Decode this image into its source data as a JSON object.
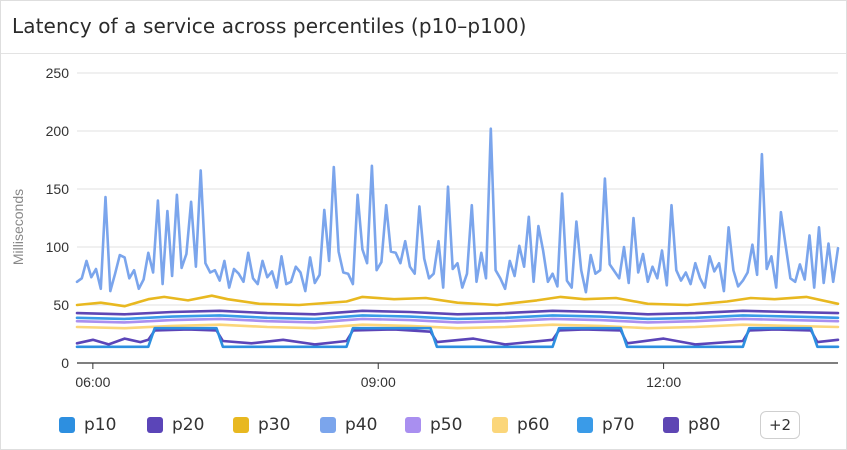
{
  "chart_data": {
    "type": "line",
    "title": "Latency of a service across percentiles (p10–p100)",
    "ylabel": "Milliseconds",
    "xlabel": "",
    "ylim": [
      0,
      250
    ],
    "yticks": [
      0,
      50,
      100,
      150,
      200,
      250
    ],
    "x_range": [
      "05:50",
      "13:50"
    ],
    "xticks": [
      "06:00",
      "09:00",
      "12:00"
    ],
    "grid": true,
    "legend_position": "bottom",
    "more_series_label": "+2",
    "series": [
      {
        "name": "p10",
        "color": "#2d8fe0",
        "x": [
          "05:50",
          "06:35",
          "06:39",
          "07:18",
          "07:22",
          "08:40",
          "08:44",
          "09:33",
          "09:37",
          "10:50",
          "10:54",
          "11:33",
          "11:37",
          "12:50",
          "12:54",
          "13:33",
          "13:37",
          "13:50"
        ],
        "values": [
          14,
          14,
          30,
          30,
          14,
          14,
          30,
          30,
          14,
          14,
          30,
          30,
          14,
          14,
          30,
          30,
          14,
          14
        ]
      },
      {
        "name": "p20",
        "color": "#5b45b8",
        "x": [
          "05:50",
          "06:00",
          "06:10",
          "06:20",
          "06:30",
          "06:35",
          "06:39",
          "07:00",
          "07:18",
          "07:22",
          "07:40",
          "08:00",
          "08:20",
          "08:40",
          "08:44",
          "09:10",
          "09:33",
          "09:37",
          "10:00",
          "10:20",
          "10:50",
          "10:54",
          "11:10",
          "11:33",
          "11:37",
          "12:00",
          "12:20",
          "12:50",
          "12:54",
          "13:10",
          "13:33",
          "13:37",
          "13:50"
        ],
        "values": [
          17,
          20,
          16,
          21,
          18,
          20,
          28,
          29,
          28,
          19,
          17,
          20,
          16,
          19,
          28,
          29,
          27,
          18,
          21,
          16,
          20,
          28,
          29,
          28,
          17,
          21,
          16,
          19,
          28,
          29,
          28,
          18,
          20
        ]
      },
      {
        "name": "p30",
        "color": "#e8b820",
        "x": [
          "05:50",
          "06:05",
          "06:20",
          "06:35",
          "06:45",
          "07:00",
          "07:15",
          "07:25",
          "07:45",
          "08:10",
          "08:40",
          "08:50",
          "09:10",
          "09:30",
          "09:50",
          "10:15",
          "10:40",
          "10:55",
          "11:10",
          "11:30",
          "11:50",
          "12:15",
          "12:40",
          "12:55",
          "13:10",
          "13:30",
          "13:50"
        ],
        "values": [
          50,
          52,
          49,
          55,
          57,
          54,
          58,
          55,
          51,
          50,
          53,
          57,
          55,
          56,
          52,
          50,
          54,
          57,
          55,
          56,
          51,
          50,
          53,
          56,
          55,
          57,
          51
        ]
      },
      {
        "name": "p40",
        "color": "#7ba5ec",
        "x": [
          "05:50",
          "05:53",
          "05:56",
          "05:59",
          "06:02",
          "06:05",
          "06:08",
          "06:11",
          "06:14",
          "06:17",
          "06:20",
          "06:23",
          "06:26",
          "06:29",
          "06:32",
          "06:35",
          "06:38",
          "06:41",
          "06:44",
          "06:47",
          "06:50",
          "06:53",
          "06:56",
          "06:59",
          "07:02",
          "07:05",
          "07:08",
          "07:11",
          "07:14",
          "07:17",
          "07:20",
          "07:23",
          "07:26",
          "07:29",
          "07:32",
          "07:35",
          "07:38",
          "07:41",
          "07:44",
          "07:47",
          "07:50",
          "07:53",
          "07:56",
          "07:59",
          "08:02",
          "08:05",
          "08:08",
          "08:11",
          "08:14",
          "08:17",
          "08:20",
          "08:23",
          "08:26",
          "08:29",
          "08:32",
          "08:35",
          "08:38",
          "08:41",
          "08:44",
          "08:47",
          "08:50",
          "08:53",
          "08:56",
          "08:59",
          "09:02",
          "09:05",
          "09:08",
          "09:11",
          "09:14",
          "09:17",
          "09:20",
          "09:23",
          "09:26",
          "09:29",
          "09:32",
          "09:35",
          "09:38",
          "09:41",
          "09:44",
          "09:47",
          "09:50",
          "09:53",
          "09:56",
          "09:59",
          "10:02",
          "10:05",
          "10:08",
          "10:11",
          "10:14",
          "10:17",
          "10:20",
          "10:23",
          "10:26",
          "10:29",
          "10:32",
          "10:35",
          "10:38",
          "10:41",
          "10:44",
          "10:47",
          "10:50",
          "10:53",
          "10:56",
          "10:59",
          "11:02",
          "11:05",
          "11:08",
          "11:11",
          "11:14",
          "11:17",
          "11:20",
          "11:23",
          "11:26",
          "11:29",
          "11:32",
          "11:35",
          "11:38",
          "11:41",
          "11:44",
          "11:47",
          "11:50",
          "11:53",
          "11:56",
          "11:59",
          "12:02",
          "12:05",
          "12:08",
          "12:11",
          "12:14",
          "12:17",
          "12:20",
          "12:23",
          "12:26",
          "12:29",
          "12:32",
          "12:35",
          "12:38",
          "12:41",
          "12:44",
          "12:47",
          "12:50",
          "12:53",
          "12:56",
          "12:59",
          "13:02",
          "13:05",
          "13:08",
          "13:11",
          "13:14",
          "13:17",
          "13:20",
          "13:23",
          "13:26",
          "13:29",
          "13:32",
          "13:35",
          "13:38",
          "13:41",
          "13:44",
          "13:47",
          "13:50"
        ],
        "values": [
          70,
          73,
          88,
          74,
          81,
          64,
          143,
          62,
          77,
          93,
          91,
          73,
          80,
          64,
          72,
          95,
          78,
          140,
          68,
          131,
          75,
          145,
          82,
          94,
          139,
          83,
          166,
          86,
          78,
          80,
          71,
          88,
          65,
          81,
          77,
          70,
          95,
          73,
          68,
          88,
          74,
          79,
          65,
          92,
          68,
          70,
          83,
          78,
          62,
          91,
          69,
          76,
          132,
          88,
          169,
          96,
          78,
          77,
          68,
          145,
          98,
          86,
          170,
          80,
          87,
          136,
          96,
          95,
          86,
          105,
          83,
          77,
          135,
          90,
          73,
          77,
          105,
          65,
          152,
          81,
          86,
          65,
          77,
          136,
          70,
          95,
          73,
          202,
          80,
          73,
          64,
          88,
          75,
          101,
          83,
          126,
          70,
          118,
          97,
          70,
          77,
          66,
          146,
          71,
          65,
          122,
          80,
          61,
          93,
          77,
          80,
          159,
          85,
          79,
          73,
          100,
          69,
          125,
          78,
          94,
          70,
          83,
          73,
          97,
          67,
          136,
          80,
          71,
          78,
          68,
          86,
          73,
          65,
          92,
          79,
          86,
          62,
          117,
          80,
          66,
          71,
          78,
          102,
          76,
          180,
          81,
          92,
          65,
          130,
          101,
          73,
          70,
          85,
          72,
          110,
          65,
          117,
          69,
          103,
          70,
          99
        ]
      },
      {
        "name": "p50",
        "color": "#a98ff0",
        "x": [
          "05:50",
          "06:20",
          "06:50",
          "07:20",
          "07:50",
          "08:20",
          "08:50",
          "09:20",
          "09:50",
          "10:20",
          "10:50",
          "11:20",
          "11:50",
          "12:20",
          "12:50",
          "13:20",
          "13:50"
        ],
        "values": [
          36,
          35,
          37,
          38,
          36,
          35,
          38,
          37,
          35,
          36,
          38,
          37,
          35,
          36,
          38,
          37,
          36
        ]
      },
      {
        "name": "p60",
        "color": "#fbd67a",
        "x": [
          "05:50",
          "06:20",
          "06:50",
          "07:20",
          "07:50",
          "08:20",
          "08:50",
          "09:20",
          "09:50",
          "10:20",
          "10:50",
          "11:20",
          "11:50",
          "12:20",
          "12:50",
          "13:20",
          "13:50"
        ],
        "values": [
          31,
          30,
          32,
          33,
          31,
          30,
          33,
          32,
          30,
          31,
          33,
          32,
          30,
          31,
          33,
          32,
          31
        ]
      },
      {
        "name": "p70",
        "color": "#3a9be8",
        "x": [
          "05:50",
          "06:20",
          "06:50",
          "07:20",
          "07:50",
          "08:20",
          "08:50",
          "09:20",
          "09:50",
          "10:20",
          "10:50",
          "11:20",
          "11:50",
          "12:20",
          "12:50",
          "13:20",
          "13:50"
        ],
        "values": [
          39,
          38,
          40,
          41,
          39,
          38,
          41,
          40,
          38,
          39,
          41,
          40,
          38,
          39,
          41,
          40,
          39
        ]
      },
      {
        "name": "p80",
        "color": "#5e46b4",
        "x": [
          "05:50",
          "06:20",
          "06:50",
          "07:20",
          "07:50",
          "08:20",
          "08:50",
          "09:20",
          "09:50",
          "10:20",
          "10:50",
          "11:20",
          "11:50",
          "12:20",
          "12:50",
          "13:20",
          "13:50"
        ],
        "values": [
          43,
          42,
          44,
          45,
          43,
          42,
          45,
          44,
          42,
          43,
          45,
          44,
          42,
          43,
          45,
          44,
          43
        ]
      }
    ]
  }
}
